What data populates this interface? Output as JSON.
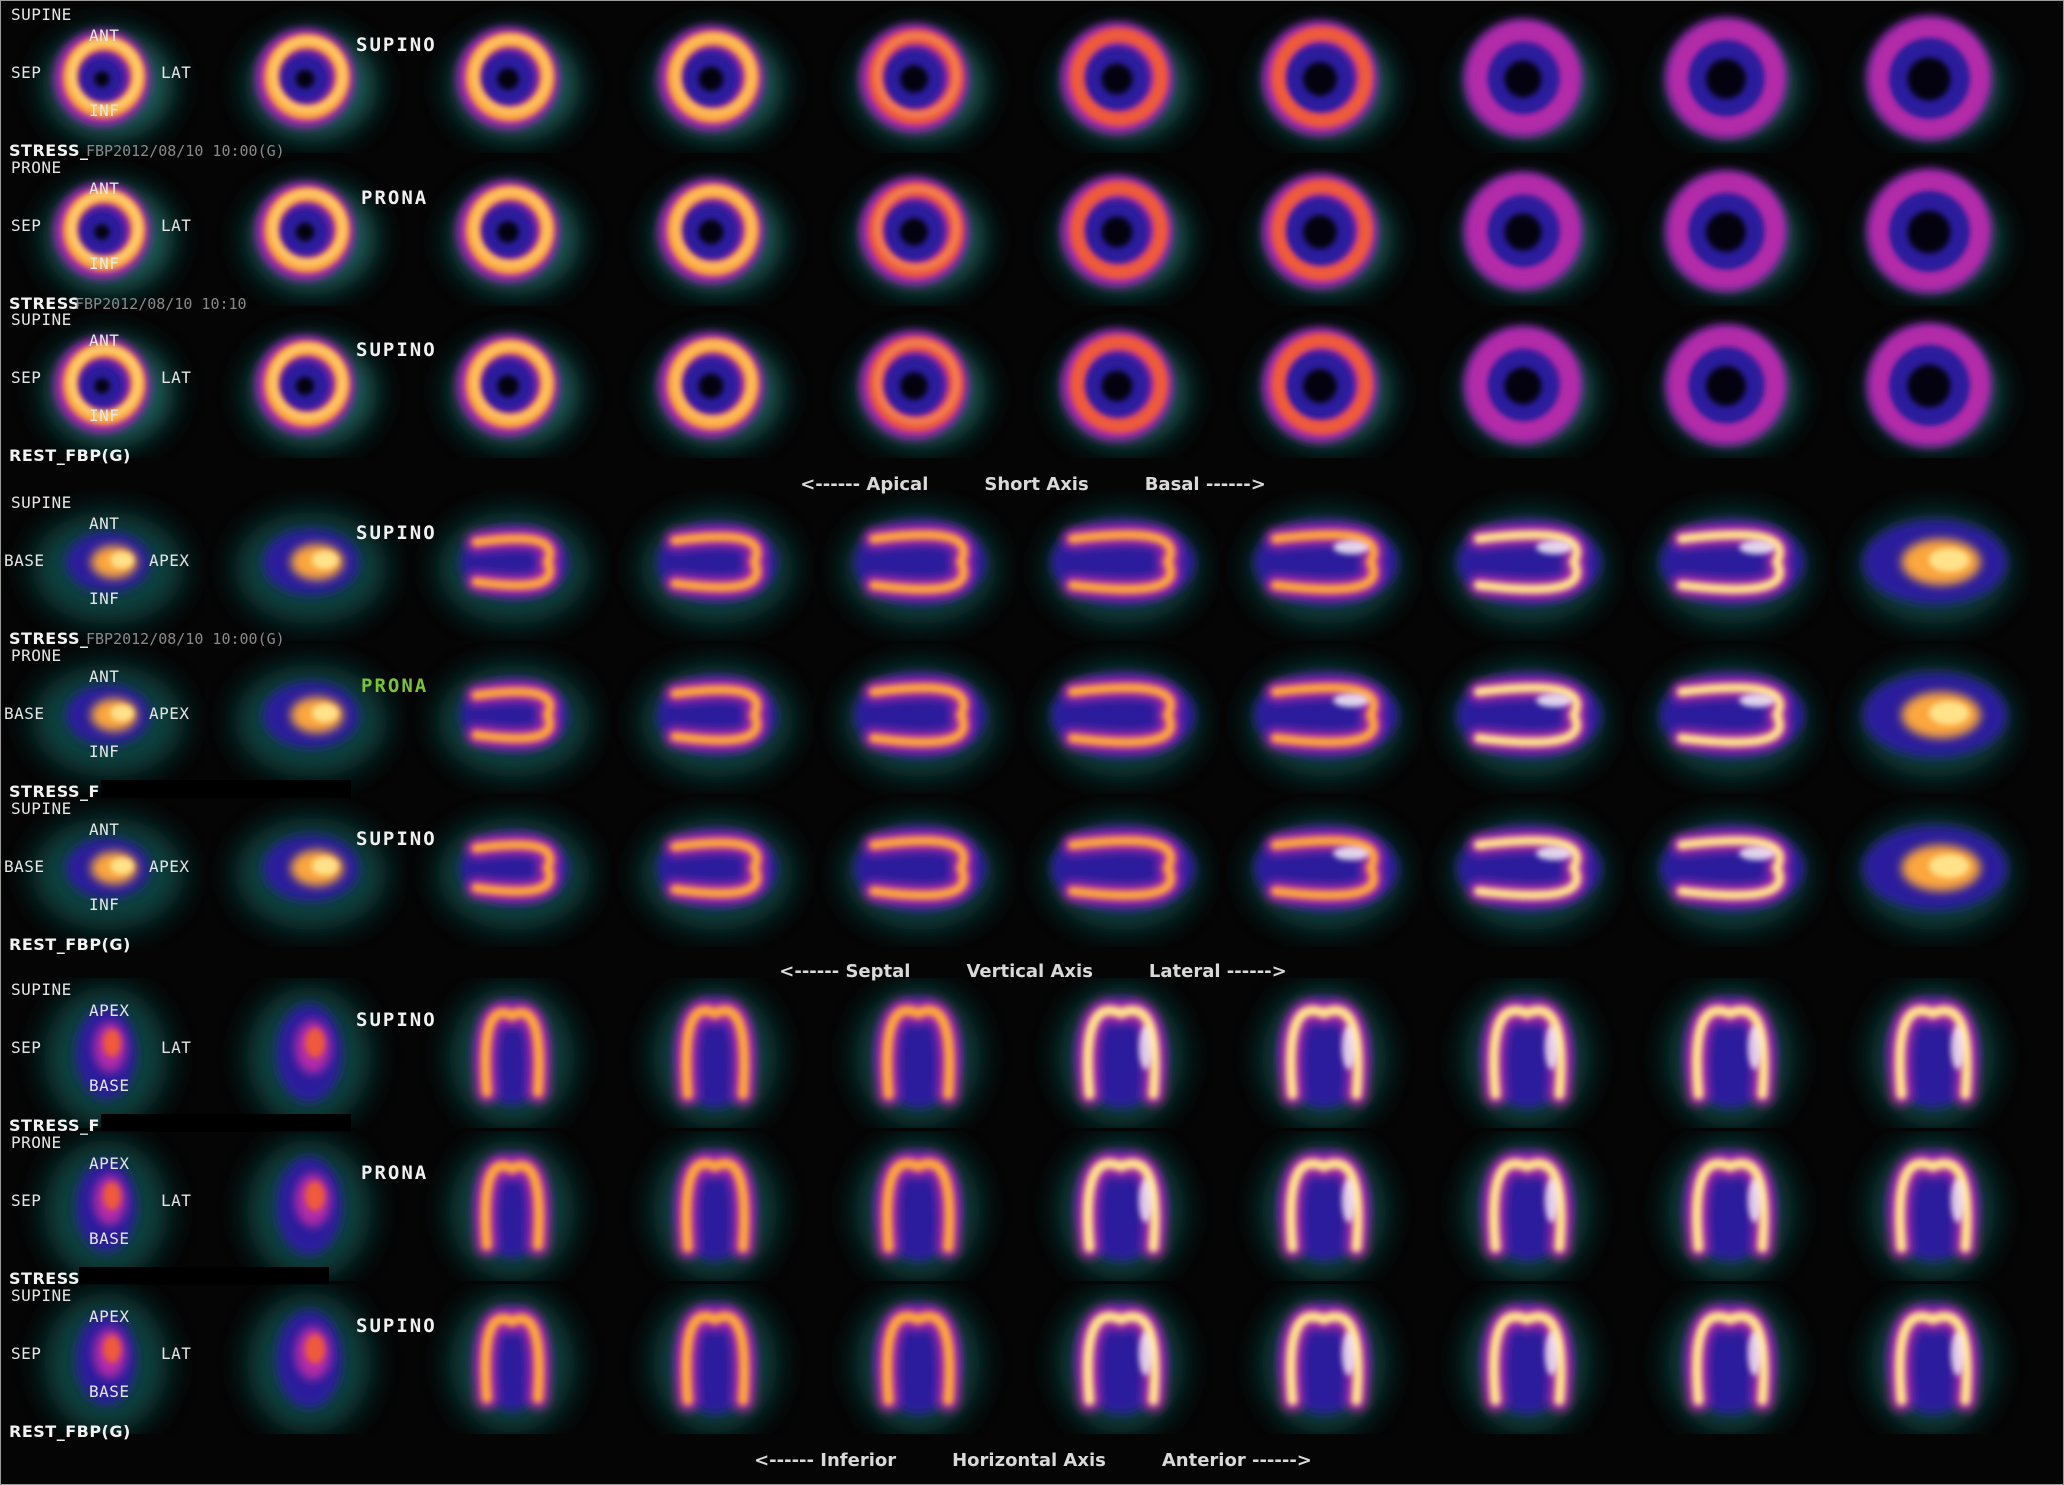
{
  "colors": {
    "background": "#050505",
    "ramp": [
      "#000000",
      "#0f4a46",
      "#4aa89a",
      "#2a1f9c",
      "#5c2fc9",
      "#b22ca8",
      "#ee5a3a",
      "#fca63c",
      "#ffe28a",
      "#ffffff"
    ]
  },
  "sections": [
    {
      "view": "short-axis",
      "caption": {
        "left": "<------ Apical",
        "center": "Short Axis",
        "right": "Basal ------>"
      },
      "rows": [
        {
          "position": "SUPINE",
          "mode": "SUPINO",
          "highlight": false,
          "study": "STRESS_",
          "study_id": "FBP2012/08/10 10:00(G)",
          "redacted": false,
          "orient": {
            "top": "ANT",
            "left": "SEP",
            "right": "LAT",
            "bottom": "INF"
          }
        },
        {
          "position": "PRONE",
          "mode": "PRONA",
          "highlight": false,
          "study": "STRESS",
          "study_id": "FBP2012/08/10 10:10",
          "redacted": false,
          "orient": {
            "top": "ANT",
            "left": "SEP",
            "right": "LAT",
            "bottom": "INF"
          }
        },
        {
          "position": "SUPINE",
          "mode": "SUPINO",
          "highlight": false,
          "study": "REST_FBP(G)",
          "study_id": "",
          "redacted": false,
          "orient": {
            "top": "ANT",
            "left": "SEP",
            "right": "LAT",
            "bottom": "INF"
          }
        }
      ]
    },
    {
      "view": "vertical-long-axis",
      "caption": {
        "left": "<------ Septal",
        "center": "Vertical Axis",
        "right": "Lateral ------>"
      },
      "rows": [
        {
          "position": "SUPINE",
          "mode": "SUPINO",
          "highlight": false,
          "study": "STRESS_",
          "study_id": "FBP2012/08/10 10:00(G)",
          "redacted": false,
          "orient": {
            "top": "ANT",
            "left": "BASE",
            "right": "APEX",
            "bottom": "INF"
          }
        },
        {
          "position": "PRONE",
          "mode": "PRONA",
          "highlight": true,
          "study": "STRESS_F",
          "study_id": "",
          "redacted": true,
          "orient": {
            "top": "ANT",
            "left": "BASE",
            "right": "APEX",
            "bottom": "INF"
          }
        },
        {
          "position": "SUPINE",
          "mode": "SUPINO",
          "highlight": false,
          "study": "REST_FBP(G)",
          "study_id": "",
          "redacted": false,
          "orient": {
            "top": "ANT",
            "left": "BASE",
            "right": "APEX",
            "bottom": "INF"
          }
        }
      ]
    },
    {
      "view": "horizontal-long-axis",
      "caption": {
        "left": "<------ Inferior",
        "center": "Horizontal Axis",
        "right": "Anterior ------>"
      },
      "rows": [
        {
          "position": "SUPINE",
          "mode": "SUPINO",
          "highlight": false,
          "study": "STRESS_F",
          "study_id": "",
          "redacted": true,
          "orient": {
            "top": "APEX",
            "left": "SEP",
            "right": "LAT",
            "bottom": "BASE"
          }
        },
        {
          "position": "PRONE",
          "mode": "PRONA",
          "highlight": false,
          "study": "STRESS",
          "study_id": "",
          "redacted": true,
          "orient": {
            "top": "APEX",
            "left": "SEP",
            "right": "LAT",
            "bottom": "BASE"
          }
        },
        {
          "position": "SUPINE",
          "mode": "SUPINO",
          "highlight": false,
          "study": "REST_FBP(G)",
          "study_id": "",
          "redacted": false,
          "orient": {
            "top": "APEX",
            "left": "SEP",
            "right": "LAT",
            "bottom": "BASE"
          }
        }
      ]
    }
  ]
}
